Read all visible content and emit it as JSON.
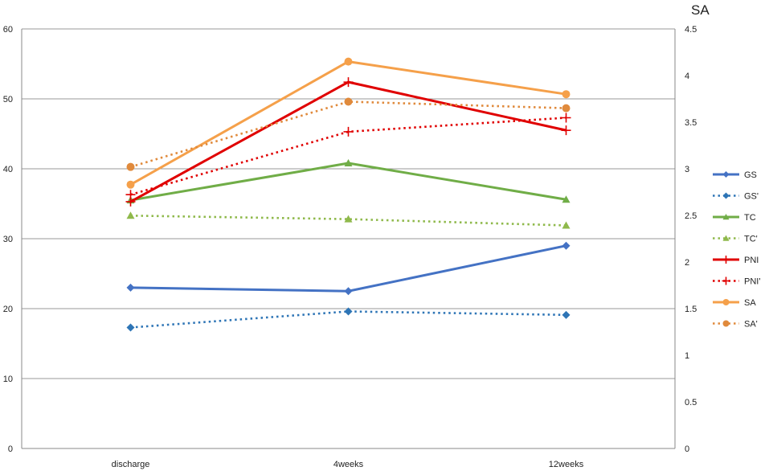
{
  "chart_data": {
    "type": "line",
    "categories": [
      "discharge",
      "4weeks",
      "12weeks"
    ],
    "left_axis": {
      "ylim": [
        0,
        60
      ],
      "ticks": [
        "0",
        "10",
        "20",
        "30",
        "40",
        "50",
        "60"
      ]
    },
    "right_axis": {
      "title": "SA",
      "ylim": [
        0,
        4.5
      ],
      "ticks": [
        "0",
        "0.5",
        "1",
        "1.5",
        "2",
        "2.5",
        "3",
        "3.5",
        "4",
        "4.5"
      ]
    },
    "grid": true,
    "legend_position": "right",
    "series": [
      {
        "name": "GS",
        "axis": "left",
        "values": [
          23.0,
          22.5,
          29.0
        ],
        "color": "#4472c4",
        "dash": "solid",
        "marker": "diamond"
      },
      {
        "name": "GS'",
        "axis": "left",
        "values": [
          17.3,
          19.6,
          19.1
        ],
        "color": "#2e75b6",
        "dash": "dotted",
        "marker": "diamond"
      },
      {
        "name": "TC",
        "axis": "left",
        "values": [
          35.5,
          40.8,
          35.6
        ],
        "color": "#70ad47",
        "dash": "solid",
        "marker": "triangle"
      },
      {
        "name": "TC'",
        "axis": "left",
        "values": [
          33.3,
          32.8,
          31.9
        ],
        "color": "#8fb94b",
        "dash": "dotted",
        "marker": "triangle"
      },
      {
        "name": "PNI",
        "axis": "left",
        "values": [
          35.3,
          52.4,
          45.5
        ],
        "color": "#e00000",
        "dash": "solid",
        "marker": "plus"
      },
      {
        "name": "PNI'",
        "axis": "left",
        "values": [
          36.3,
          45.3,
          47.3
        ],
        "color": "#e00000",
        "dash": "dotted",
        "marker": "plus"
      },
      {
        "name": "SA",
        "axis": "right",
        "values": [
          2.83,
          4.15,
          3.8
        ],
        "color": "#f5a04a",
        "dash": "solid",
        "marker": "circle"
      },
      {
        "name": "SA'",
        "axis": "right",
        "values": [
          3.02,
          3.72,
          3.65
        ],
        "color": "#e08a3c",
        "dash": "dotted",
        "marker": "circle"
      }
    ]
  }
}
